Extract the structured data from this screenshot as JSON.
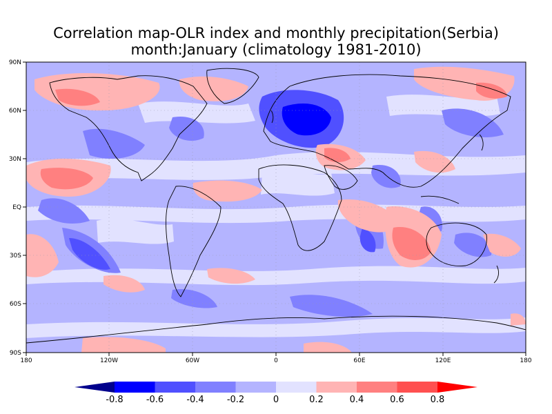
{
  "title": {
    "line1": "Correlation map-OLR index and monthly precipitation(Serbia)",
    "line2": "month:January (climatology 1981-2010)"
  },
  "map": {
    "projection": "equirectangular",
    "lat_range": [
      -90,
      90
    ],
    "lon_range": [
      -180,
      180
    ],
    "y_tick_labels": [
      "90N",
      "60N",
      "30N",
      "EQ",
      "30S",
      "60S",
      "90S"
    ],
    "x_tick_labels": [
      "180",
      "120W",
      "60W",
      "0",
      "60E",
      "120E",
      "180"
    ],
    "highlight": "strong negative correlation over Europe / Balkans"
  },
  "colorbar": {
    "labels": [
      "-0.8",
      "-0.6",
      "-0.4",
      "-0.2",
      "0",
      "0.2",
      "0.4",
      "0.6",
      "0.8"
    ],
    "colors": [
      "#00008c",
      "#0000ff",
      "#5050ff",
      "#8080ff",
      "#b4b4ff",
      "#e2e2ff",
      "#ffb4b4",
      "#ff8080",
      "#ff5050",
      "#ff0000"
    ]
  }
}
